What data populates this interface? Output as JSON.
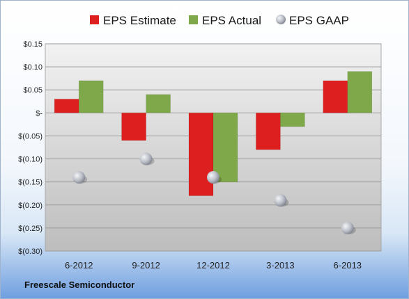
{
  "chart_data": {
    "type": "bar",
    "categories": [
      "6-2012",
      "9-2012",
      "12-2012",
      "3-2013",
      "6-2013"
    ],
    "series": [
      {
        "name": "EPS Estimate",
        "kind": "bar",
        "values": [
          0.03,
          -0.06,
          -0.18,
          -0.08,
          0.07
        ],
        "color": "#dd1f1f"
      },
      {
        "name": "EPS Actual",
        "kind": "bar",
        "values": [
          0.07,
          0.04,
          -0.15,
          -0.03,
          0.09
        ],
        "color": "#7fa84a"
      },
      {
        "name": "EPS GAAP",
        "kind": "marker",
        "values": [
          -0.14,
          -0.1,
          -0.14,
          -0.19,
          -0.25
        ],
        "color": "#b8bcc6"
      }
    ],
    "yticks": [
      {
        "value": 0.15,
        "label": "$0.15"
      },
      {
        "value": 0.1,
        "label": "$0.10"
      },
      {
        "value": 0.05,
        "label": "$0.05"
      },
      {
        "value": 0.0,
        "label": "$-"
      },
      {
        "value": -0.05,
        "label": "$(0.05)"
      },
      {
        "value": -0.1,
        "label": "$(0.10)"
      },
      {
        "value": -0.15,
        "label": "$(0.15)"
      },
      {
        "value": -0.2,
        "label": "$(0.20)"
      },
      {
        "value": -0.25,
        "label": "$(0.25)"
      },
      {
        "value": -0.3,
        "label": "$(0.30)"
      }
    ],
    "ylim": [
      -0.3,
      0.15
    ],
    "grid": true,
    "legend_position": "top"
  },
  "company": "Freescale Semiconductor"
}
